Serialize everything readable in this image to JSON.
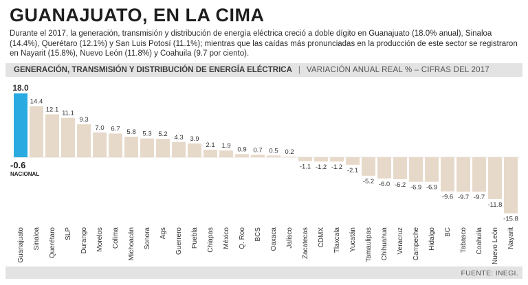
{
  "headline": "GUANAJUATO, EN LA CIMA",
  "intro": "Durante el 2017, la generación, transmisión y distribución de energía eléctrica creció a doble dígito en Guanajuato (18.0% anual), Sinaloa (14.4%), Querétaro (12.1%) y San Luis Potosí (11.1%); mientras que las caídas más pronunciadas en la producción de este sector se registraron en Nayarit (15.8%), Nuevo León (11.8%) y Coahuila (9.7 por ciento).",
  "source": "FUENTE: INEGI.",
  "colors": {
    "highlight": "#29abe2",
    "bar": "#e7d9c9",
    "text": "#222222"
  },
  "chart_data": {
    "type": "bar",
    "title": "GENERACIÓN, TRANSMISIÓN Y DISTRIBUCIÓN DE ENERGÍA ELÉCTRICA",
    "subtitle": "VARIACIÓN ANUAL REAL % – CIFRAS DEL 2017",
    "ylim": [
      -15.8,
      18.0
    ],
    "categories": [
      "Guanajuato",
      "Sinaloa",
      "Querétaro",
      "SLP",
      "Durango",
      "Morelos",
      "Colima",
      "Michoacán",
      "Sonora",
      "Ags",
      "Guerrero",
      "Puebla",
      "Chiapas",
      "México",
      "Q. Roo",
      "BCS",
      "Oaxaca",
      "Jalisco",
      "Zacatecas",
      "CDMX",
      "Tlaxcala",
      "Yucatán",
      "Tamaulipas",
      "Chihuahua",
      "Veracruz",
      "Campeche",
      "Hidalgo",
      "BC",
      "Tabasco",
      "Coahuila",
      "Nuevo León",
      "Nayarit"
    ],
    "values": [
      18.0,
      14.4,
      12.1,
      11.1,
      9.3,
      7.0,
      6.7,
      5.8,
      5.3,
      5.2,
      4.3,
      3.9,
      2.1,
      1.9,
      0.9,
      0.7,
      0.5,
      0.2,
      -1.1,
      -1.2,
      -1.2,
      -2.1,
      -5.2,
      -6.0,
      -6.2,
      -6.9,
      -6.9,
      -9.6,
      -9.7,
      -9.7,
      -11.8,
      -15.8
    ],
    "labels": [
      "18.0",
      "14.4",
      "12.1",
      "11.1",
      "9.3",
      "7.0",
      "6.7",
      "5.8",
      "5.3",
      "5.2",
      "4.3",
      "3.9",
      "2.1",
      "1.9",
      "0.9",
      "0.7",
      "0.5",
      "0.2",
      "-1.1",
      "-1.2",
      "-1.2",
      "-2.1",
      "-5.2",
      "-6.0",
      "-6.2",
      "-6.9",
      "-6.9",
      "-9.6",
      "-9.7",
      "-9.7",
      "-11.8",
      "-15.8"
    ],
    "highlight_index": 0,
    "national": {
      "value_label": "-0.6",
      "label": "NACIONAL"
    }
  }
}
